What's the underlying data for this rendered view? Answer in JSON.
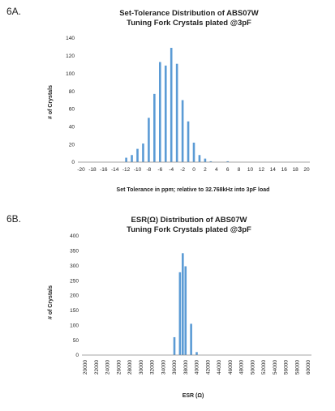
{
  "chart_data": [
    {
      "figure_label": "6A.",
      "type": "bar",
      "title_lines": [
        "Set-Tolerance Distribution of ABS07W",
        "Tuning Fork Crystals plated @3pF"
      ],
      "xlabel": "Set Tolerance in ppm; relative to 32.768kHz into 3pF load",
      "ylabel": "# of Crystals",
      "ylim": [
        0,
        140
      ],
      "yticks": [
        "0",
        "20",
        "40",
        "60",
        "80",
        "100",
        "120",
        "140"
      ],
      "xrange": [
        -20,
        20
      ],
      "xtick_labels": [
        "-20",
        "-18",
        "-16",
        "-14",
        "-12",
        "-10",
        "-8",
        "-6",
        "-4",
        "-2",
        "0",
        "2",
        "4",
        "6",
        "8",
        "10",
        "12",
        "14",
        "16",
        "18",
        "20"
      ],
      "grid": false,
      "x": [
        -12,
        -11,
        -10,
        -9,
        -8,
        -7,
        -6,
        -5,
        -4,
        -3,
        -2,
        -1,
        0,
        1,
        2,
        3,
        4,
        5,
        6
      ],
      "values": [
        5,
        8,
        15,
        21,
        50,
        77,
        113,
        109,
        129,
        111,
        70,
        46,
        22,
        8,
        4,
        1,
        0,
        0,
        1
      ],
      "accent_color": "#5b9bd5"
    },
    {
      "figure_label": "6B.",
      "type": "bar",
      "title_lines": [
        "ESR(Ω) Distribution of ABS07W",
        "Tuning Fork Crystals plated @3pF"
      ],
      "xlabel": "ESR (Ω)",
      "ylabel": "# of Crystals",
      "ylim": [
        0,
        400
      ],
      "yticks": [
        "0",
        "50",
        "100",
        "150",
        "200",
        "250",
        "300",
        "350",
        "400"
      ],
      "xrange": [
        20000,
        60000
      ],
      "xtick_labels": [
        "20000",
        "22000",
        "24000",
        "26000",
        "28000",
        "30000",
        "32000",
        "34000",
        "36000",
        "38000",
        "40000",
        "42000",
        "44000",
        "46000",
        "48000",
        "50000",
        "52000",
        "54000",
        "56000",
        "58000",
        "60000"
      ],
      "grid": false,
      "x": [
        36000,
        37000,
        37500,
        38000,
        39000,
        40000
      ],
      "values": [
        60,
        278,
        342,
        298,
        105,
        10
      ],
      "accent_color": "#5b9bd5"
    }
  ]
}
